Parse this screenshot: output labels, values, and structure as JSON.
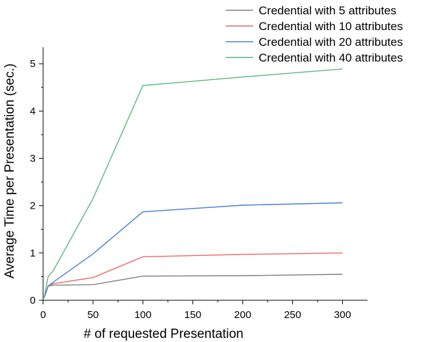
{
  "chart_data": {
    "type": "line",
    "title": "",
    "xlabel": "# of requested Presentation",
    "ylabel": "Average Time per Presentation (sec.)",
    "xlim": [
      0,
      325
    ],
    "ylim": [
      0,
      5.35
    ],
    "xticks": [
      0,
      50,
      100,
      150,
      200,
      250,
      300
    ],
    "yticks": [
      0,
      1,
      2,
      3,
      4,
      5
    ],
    "grid": false,
    "legend_position": "top-right",
    "series": [
      {
        "name": "Credential with 5 attributes",
        "color": "#808080",
        "x": [
          1,
          5,
          10,
          50,
          100,
          200,
          300
        ],
        "y": [
          0.05,
          0.3,
          0.32,
          0.33,
          0.51,
          0.52,
          0.55
        ]
      },
      {
        "name": "Credential with 10 attributes",
        "color": "#ee6666",
        "x": [
          1,
          5,
          10,
          50,
          100,
          200,
          300
        ],
        "y": [
          0.05,
          0.3,
          0.35,
          0.48,
          0.92,
          0.97,
          1.0
        ]
      },
      {
        "name": "Credential with 20 attributes",
        "color": "#4a7fd4",
        "x": [
          1,
          5,
          10,
          50,
          100,
          200,
          300
        ],
        "y": [
          0.05,
          0.3,
          0.38,
          0.98,
          1.87,
          2.01,
          2.06
        ]
      },
      {
        "name": "Credential with 40 attributes",
        "color": "#5cb87a",
        "x": [
          1,
          5,
          10,
          50,
          100,
          200,
          300
        ],
        "y": [
          0.05,
          0.5,
          0.62,
          2.15,
          4.54,
          4.72,
          4.89
        ]
      }
    ]
  }
}
